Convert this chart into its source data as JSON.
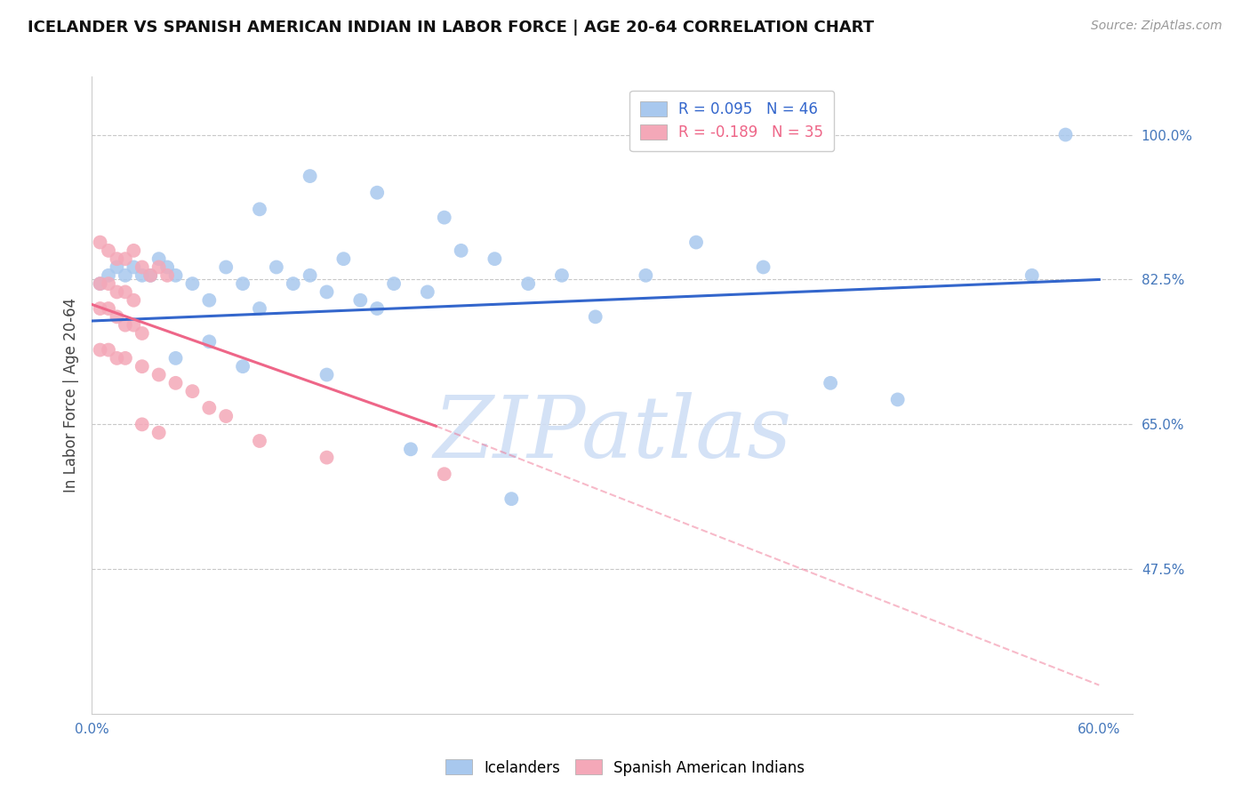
{
  "title": "ICELANDER VS SPANISH AMERICAN INDIAN IN LABOR FORCE | AGE 20-64 CORRELATION CHART",
  "source": "Source: ZipAtlas.com",
  "ylabel": "In Labor Force | Age 20-64",
  "xlim": [
    0.0,
    0.62
  ],
  "ylim": [
    0.3,
    1.07
  ],
  "xticks": [
    0.0,
    0.1,
    0.2,
    0.3,
    0.4,
    0.5,
    0.6
  ],
  "xticklabels": [
    "0.0%",
    "",
    "",
    "",
    "",
    "",
    "60.0%"
  ],
  "ytick_positions": [
    0.475,
    0.65,
    0.825,
    1.0
  ],
  "ytick_labels": [
    "47.5%",
    "65.0%",
    "82.5%",
    "100.0%"
  ],
  "R_blue": 0.095,
  "N_blue": 46,
  "R_pink": -0.189,
  "N_pink": 35,
  "blue_color": "#A8C8EE",
  "pink_color": "#F4A8B8",
  "trend_blue": "#3366CC",
  "trend_pink": "#EE6688",
  "watermark_text": "ZIPatlas",
  "watermark_color": "#D0DFF5",
  "blue_scatter_x": [
    0.005,
    0.01,
    0.015,
    0.02,
    0.025,
    0.03,
    0.035,
    0.04,
    0.045,
    0.05,
    0.06,
    0.07,
    0.08,
    0.09,
    0.1,
    0.11,
    0.12,
    0.13,
    0.14,
    0.15,
    0.16,
    0.17,
    0.18,
    0.2,
    0.22,
    0.24,
    0.26,
    0.28,
    0.3,
    0.33,
    0.36,
    0.4,
    0.44,
    0.48,
    0.56,
    0.58,
    0.13,
    0.17,
    0.21,
    0.1,
    0.07,
    0.05,
    0.09,
    0.14,
    0.19,
    0.25
  ],
  "blue_scatter_y": [
    0.82,
    0.83,
    0.84,
    0.83,
    0.84,
    0.83,
    0.83,
    0.85,
    0.84,
    0.83,
    0.82,
    0.8,
    0.84,
    0.82,
    0.79,
    0.84,
    0.82,
    0.83,
    0.81,
    0.85,
    0.8,
    0.79,
    0.82,
    0.81,
    0.86,
    0.85,
    0.82,
    0.83,
    0.78,
    0.83,
    0.87,
    0.84,
    0.7,
    0.68,
    0.83,
    1.0,
    0.95,
    0.93,
    0.9,
    0.91,
    0.75,
    0.73,
    0.72,
    0.71,
    0.62,
    0.56
  ],
  "pink_scatter_x": [
    0.005,
    0.01,
    0.015,
    0.02,
    0.025,
    0.03,
    0.035,
    0.04,
    0.045,
    0.005,
    0.01,
    0.015,
    0.02,
    0.025,
    0.005,
    0.01,
    0.015,
    0.02,
    0.025,
    0.03,
    0.005,
    0.01,
    0.015,
    0.02,
    0.03,
    0.04,
    0.05,
    0.06,
    0.07,
    0.08,
    0.1,
    0.14,
    0.21,
    0.03,
    0.04
  ],
  "pink_scatter_y": [
    0.87,
    0.86,
    0.85,
    0.85,
    0.86,
    0.84,
    0.83,
    0.84,
    0.83,
    0.82,
    0.82,
    0.81,
    0.81,
    0.8,
    0.79,
    0.79,
    0.78,
    0.77,
    0.77,
    0.76,
    0.74,
    0.74,
    0.73,
    0.73,
    0.72,
    0.71,
    0.7,
    0.69,
    0.67,
    0.66,
    0.63,
    0.61,
    0.59,
    0.65,
    0.64
  ],
  "trend_blue_x0": 0.0,
  "trend_blue_x1": 0.6,
  "trend_blue_y0": 0.775,
  "trend_blue_y1": 0.825,
  "trend_pink_x0": 0.0,
  "trend_pink_solid_x1": 0.205,
  "trend_pink_x1": 0.6,
  "trend_pink_y0": 0.795,
  "trend_pink_y_solid1": 0.648,
  "trend_pink_y1": 0.335
}
